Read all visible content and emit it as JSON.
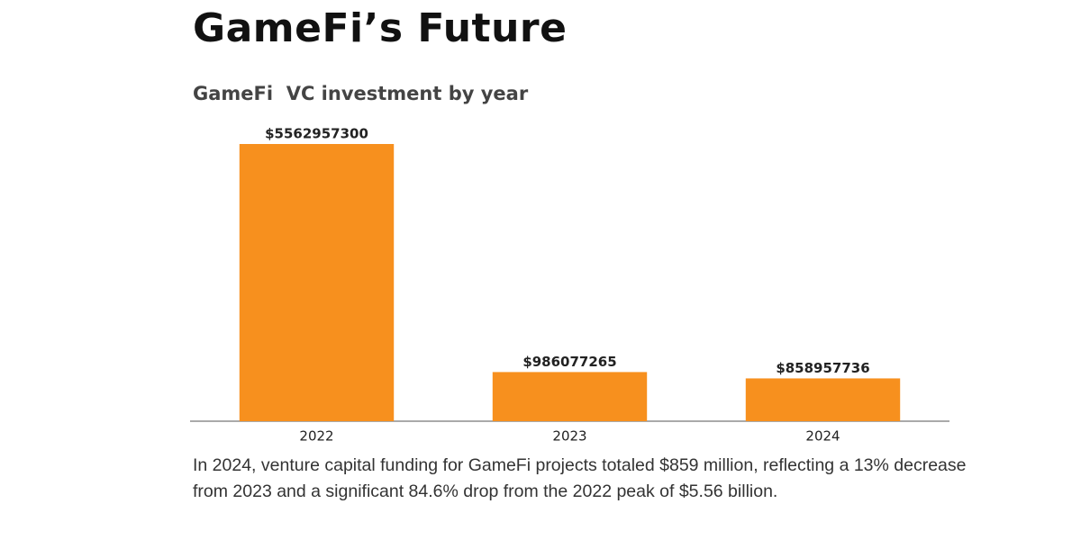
{
  "heading": "GameFi’s Future",
  "caption": "In 2024, venture capital funding for GameFi projects totaled $859 million, reflecting a 13% decrease from 2023 and a significant 84.6% drop from the 2022 peak of $5.56 billion.",
  "chart_data": {
    "type": "bar",
    "title": "GameFi  VC investment by year",
    "categories": [
      "2022",
      "2023",
      "2024"
    ],
    "values": [
      5562957300,
      986077265,
      858957736
    ],
    "value_labels": [
      "$5562957300",
      "$986077265",
      "$858957736"
    ],
    "color": "#f7901e"
  }
}
